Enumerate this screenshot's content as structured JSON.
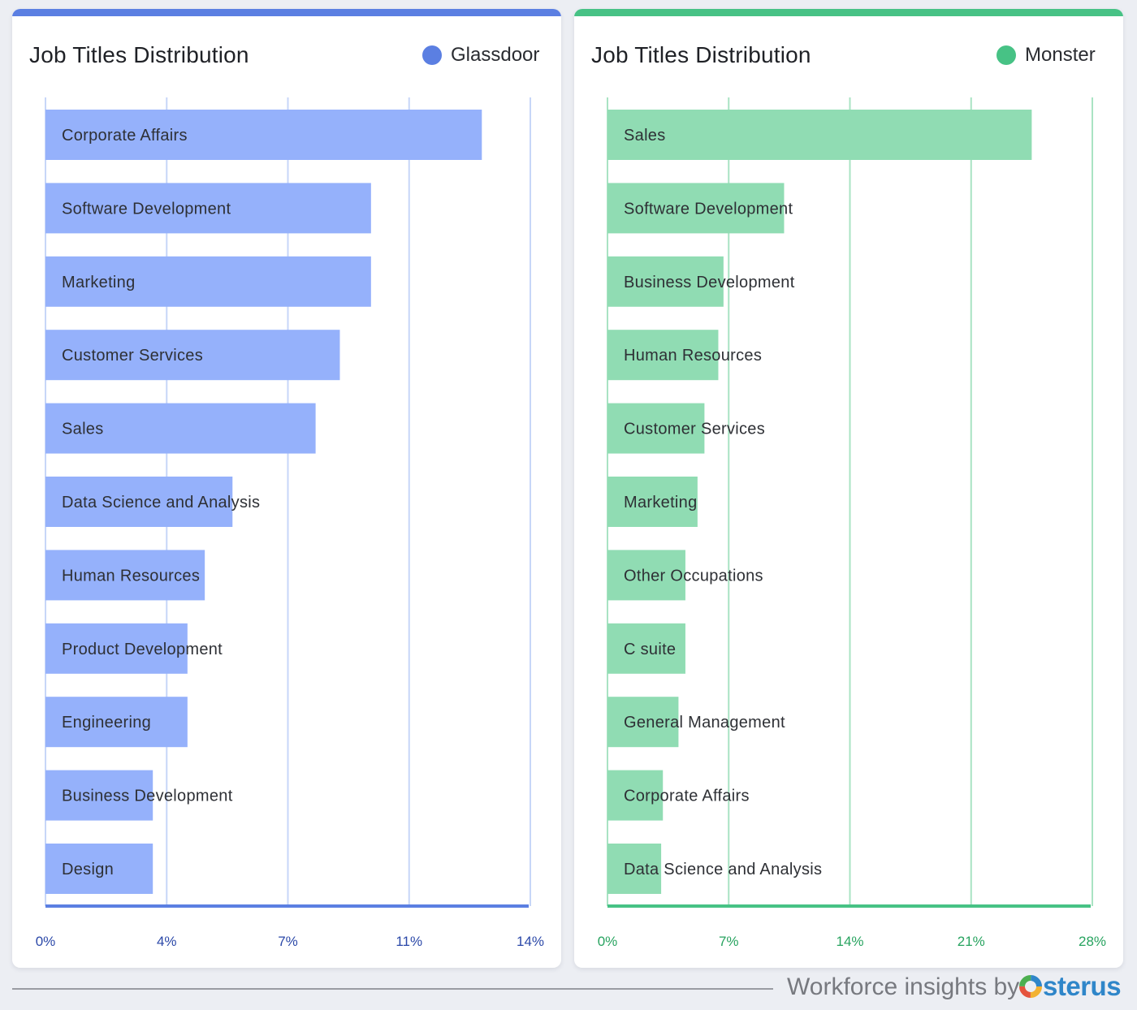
{
  "panels": [
    {
      "title": "Job Titles Distribution",
      "legend_label": "Glassdoor",
      "colors": {
        "accent": "#5b7fe2",
        "bar": "#95b1fb",
        "grid": "#c7d6f8",
        "tick": "#2b48a8"
      }
    },
    {
      "title": "Job Titles Distribution",
      "legend_label": "Monster",
      "colors": {
        "accent": "#47c285",
        "bar": "#90dcb3",
        "grid": "#a9e3c3",
        "tick": "#27a35f"
      }
    }
  ],
  "chart_data": [
    {
      "type": "bar",
      "orientation": "horizontal",
      "title": "Job Titles Distribution",
      "series": [
        {
          "name": "Glassdoor"
        }
      ],
      "categories": [
        "Corporate Affairs",
        "Software Development",
        "Marketing",
        "Customer Services",
        "Sales",
        "Data Science and Analysis",
        "Human Resources",
        "Product Development",
        "Engineering",
        "Business Development",
        "Design"
      ],
      "values": [
        12.6,
        9.4,
        9.4,
        8.5,
        7.8,
        5.4,
        4.6,
        4.1,
        4.1,
        3.1,
        3.1
      ],
      "xlim": [
        0,
        14
      ],
      "x_ticks": [
        0,
        3.5,
        7,
        10.5,
        14
      ],
      "x_tick_labels": [
        "0%",
        "4%",
        "7%",
        "11%",
        "14%"
      ],
      "grid": true,
      "legend_position": "top-right"
    },
    {
      "type": "bar",
      "orientation": "horizontal",
      "title": "Job Titles Distribution",
      "series": [
        {
          "name": "Monster"
        }
      ],
      "categories": [
        "Sales",
        "Software Development",
        "Business Development",
        "Human Resources",
        "Customer Services",
        "Marketing",
        "Other Occupations",
        "C suite",
        "General Management",
        "Corporate Affairs",
        "Data Science and Analysis"
      ],
      "values": [
        24.5,
        10.2,
        6.7,
        6.4,
        5.6,
        5.2,
        4.5,
        4.5,
        4.1,
        3.2,
        3.1
      ],
      "xlim": [
        0,
        28
      ],
      "x_ticks": [
        0,
        7,
        14,
        21,
        28
      ],
      "x_tick_labels": [
        "0%",
        "7%",
        "14%",
        "21%",
        "28%"
      ],
      "grid": true,
      "legend_position": "top-right"
    }
  ],
  "footer": {
    "text": "Workforce insights by",
    "brand": "sterus"
  }
}
